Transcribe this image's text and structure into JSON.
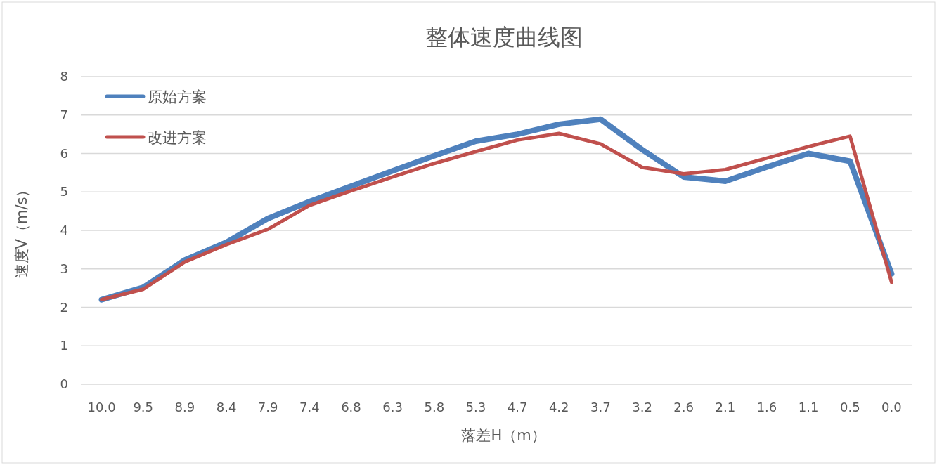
{
  "chart_data": {
    "type": "line",
    "title": "整体速度曲线图",
    "xlabel": "落差H（m）",
    "ylabel": "速度V（m/s）",
    "categories": [
      "10.0",
      "9.5",
      "8.9",
      "8.4",
      "7.9",
      "7.4",
      "6.8",
      "6.3",
      "5.8",
      "5.3",
      "4.7",
      "4.2",
      "3.7",
      "3.2",
      "2.6",
      "2.1",
      "1.6",
      "1.1",
      "0.5",
      "0.0"
    ],
    "series": [
      {
        "name": "原始方案",
        "color": "#4f81bd",
        "values": [
          2.2,
          2.52,
          3.23,
          3.69,
          4.31,
          4.75,
          5.15,
          5.55,
          5.94,
          6.32,
          6.5,
          6.76,
          6.89,
          6.1,
          5.39,
          5.28,
          5.65,
          6.0,
          5.8,
          2.87
        ]
      },
      {
        "name": "改进方案",
        "color": "#c0504d",
        "values": [
          2.2,
          2.47,
          3.18,
          3.63,
          4.03,
          4.65,
          5.03,
          5.39,
          5.74,
          6.05,
          6.35,
          6.52,
          6.25,
          5.64,
          5.47,
          5.58,
          5.88,
          6.18,
          6.45,
          2.65
        ]
      }
    ],
    "ylim": [
      0,
      8
    ],
    "yticks": [
      0,
      1,
      2,
      3,
      4,
      5,
      6,
      7,
      8
    ],
    "grid": "y",
    "legend": "top left",
    "marker": "none",
    "line_style": "solid"
  }
}
